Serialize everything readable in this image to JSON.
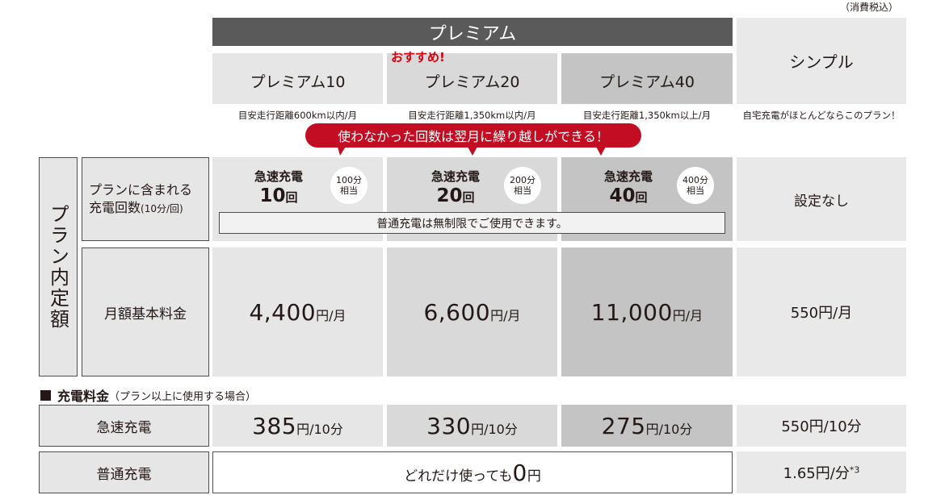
{
  "tax_note": "（消費税込）",
  "premium_header": "プレミアム",
  "recommend": "おすすめ!",
  "plans": [
    {
      "name": "プレミアム10",
      "note": "目安走行距離600km以内/月",
      "fast_title": "急速充電",
      "fast_count": "10",
      "fast_unit": "回",
      "bubble_top": "100分",
      "bubble_bottom": "相当",
      "monthly_num": "4,400",
      "monthly_unit": "円/月",
      "fast_fee_num": "385",
      "fast_fee_unit": "円/10分"
    },
    {
      "name": "プレミアム20",
      "note": "目安走行距離1,350km以内/月",
      "fast_title": "急速充電",
      "fast_count": "20",
      "fast_unit": "回",
      "bubble_top": "200分",
      "bubble_bottom": "相当",
      "monthly_num": "6,600",
      "monthly_unit": "円/月",
      "fast_fee_num": "330",
      "fast_fee_unit": "円/10分"
    },
    {
      "name": "プレミアム40",
      "note": "目安走行距離1,350km以上/月",
      "fast_title": "急速充電",
      "fast_count": "40",
      "fast_unit": "回",
      "bubble_top": "400分",
      "bubble_bottom": "相当",
      "monthly_num": "11,000",
      "monthly_unit": "円/月",
      "fast_fee_num": "275",
      "fast_fee_unit": "円/10分"
    }
  ],
  "simple": {
    "name": "シンプル",
    "note": "自宅充電がほとんどならこのプラン！",
    "included": "設定なし",
    "monthly": "550円/月",
    "fast_fee": "550円/10分",
    "normal_fee": "1.65円/分",
    "normal_fee_mark": "*3"
  },
  "carryover_banner": "使わなかった回数は翌月に繰り越しができる！",
  "side_label": "プラン内定額",
  "row_included_label_1": "プランに含まれる",
  "row_included_label_2": "充電回数",
  "row_included_label_3": "(10分/回)",
  "normal_unlimited": "普通充電は無制限でご使用できます。",
  "row_monthly_label": "月額基本料金",
  "section_title": "充電料金",
  "section_sub": "（プラン以上に使用する場合）",
  "row_fast_label": "急速充電",
  "row_normal_label": "普通充電",
  "normal_premium_pre": "どれだけ使っても",
  "normal_premium_num": "0",
  "normal_premium_unit": "円",
  "colors": {
    "header_dark": "#5a5a5a",
    "banner_red": "#c30d23",
    "accent_red": "#d7000f"
  }
}
